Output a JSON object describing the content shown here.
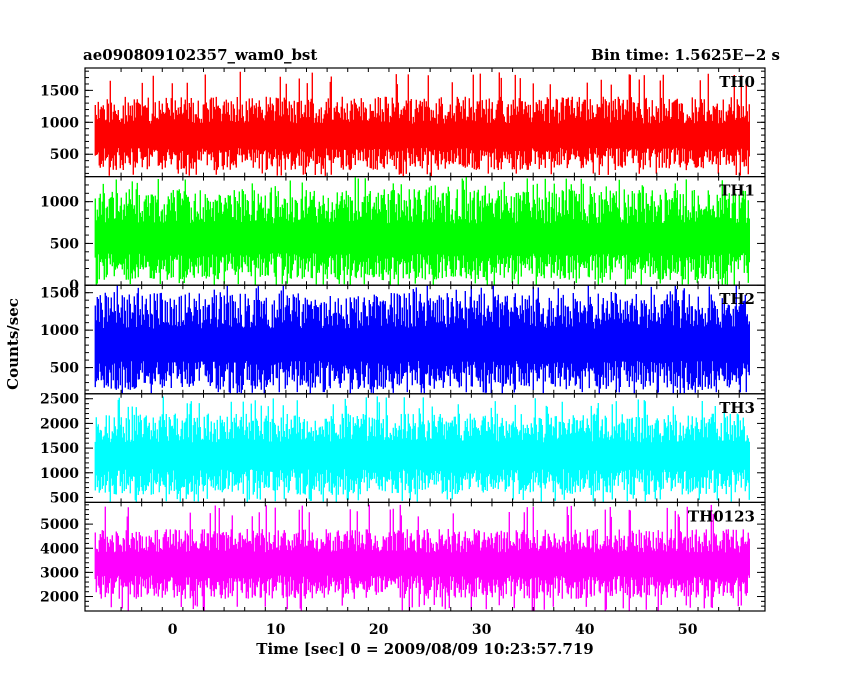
{
  "chart_data": {
    "type": "line",
    "title": "ae090809102357_wam0_bst",
    "subtitle": "Bin time: 1.5625E−2 s",
    "xlabel": "Time [sec] 0 = 2009/08/09 10:23:57.719",
    "ylabel": "Counts/sec",
    "xlim": [
      -8.5,
      57.5
    ],
    "x_ticks": [
      0,
      10,
      20,
      30,
      40,
      50
    ],
    "x_range_data": [
      -7.5,
      56.0
    ],
    "grid": false,
    "panels": [
      {
        "name": "TH0",
        "color": "#ff0000",
        "ylim": [
          150,
          1850
        ],
        "yticks": [
          500,
          1000,
          1500
        ],
        "mean": 750,
        "lo": 250,
        "hi": 1400,
        "peak": 1800
      },
      {
        "name": "TH1",
        "color": "#00ff00",
        "ylim": [
          0,
          1300
        ],
        "yticks": [
          0,
          500,
          1000
        ],
        "mean": 520,
        "lo": 60,
        "hi": 1150,
        "peak": 1300
      },
      {
        "name": "TH2",
        "color": "#0000ff",
        "ylim": [
          150,
          1600
        ],
        "yticks": [
          500,
          1000,
          1500
        ],
        "mean": 760,
        "lo": 200,
        "hi": 1500,
        "peak": 1600
      },
      {
        "name": "TH3",
        "color": "#00ffff",
        "ylim": [
          400,
          2600
        ],
        "yticks": [
          500,
          1000,
          1500,
          2000,
          2500
        ],
        "mean": 1300,
        "lo": 550,
        "hi": 2200,
        "peak": 2550
      },
      {
        "name": "TH0123",
        "color": "#ff00ff",
        "ylim": [
          1400,
          5900
        ],
        "yticks": [
          2000,
          3000,
          4000,
          5000
        ],
        "mean": 3300,
        "lo": 1900,
        "hi": 4800,
        "peak": 5800
      }
    ]
  }
}
